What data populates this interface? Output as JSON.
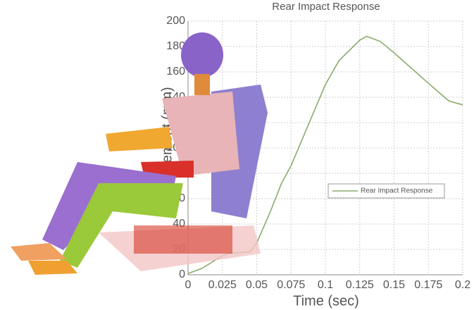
{
  "chart_data": {
    "type": "line",
    "title": "Rear Impact Response",
    "x_label": "Time (sec)",
    "y_label": "Displacement (mm)",
    "x": [
      0,
      0.01,
      0.025,
      0.03,
      0.045,
      0.05,
      0.06,
      0.068,
      0.075,
      0.1,
      0.11,
      0.125,
      0.13,
      0.14,
      0.15,
      0.175,
      0.19,
      0.2
    ],
    "series": [
      {
        "name": "Rear Impact Response",
        "color": "#8aab6c",
        "values": [
          1,
          5,
          15,
          17,
          18,
          25,
          50,
          72,
          86,
          150,
          169,
          185,
          188,
          184,
          175,
          151,
          137,
          134
        ]
      }
    ],
    "xlim": [
      0,
      0.2
    ],
    "xticks": [
      0,
      0.025,
      0.05,
      0.075,
      0.1,
      0.125,
      0.15,
      0.175,
      0.2
    ],
    "ylim": [
      0,
      200
    ],
    "yticks": [
      0,
      20,
      40,
      60,
      80,
      100,
      120,
      140,
      160,
      180,
      200
    ],
    "grid": true
  }
}
